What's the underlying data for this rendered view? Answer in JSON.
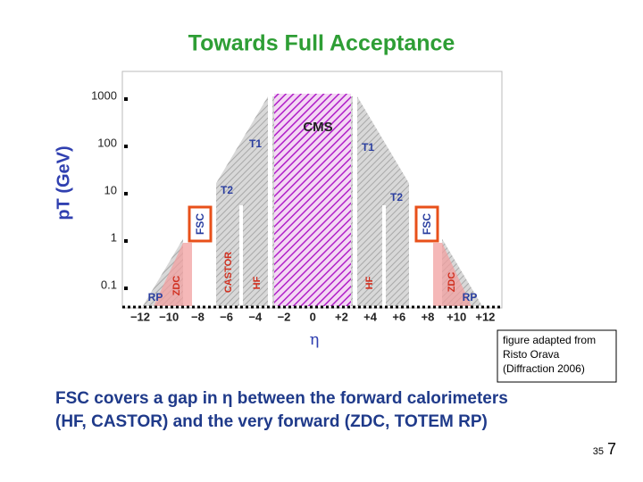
{
  "title": "Towards Full Acceptance",
  "figure": {
    "y_axis_label": "pT (GeV)",
    "y_tick_labels": [
      "1000",
      "100",
      "10",
      "1",
      "0.1"
    ],
    "x_axis_label": "η",
    "x_tick_labels": [
      "−12",
      "−10",
      "−8",
      "−6",
      "−4",
      "−2",
      "0",
      "+2",
      "+4",
      "+6",
      "+8",
      "+10",
      "+12"
    ],
    "regions": {
      "cms": "CMS",
      "t1_left": "T1",
      "t1_right": "T1",
      "t2_left": "T2",
      "t2_right": "T2",
      "fsc_left": "FSC",
      "fsc_right": "FSC",
      "castor": "CASTOR",
      "hf_left": "HF",
      "hf_right": "HF",
      "zdc_left": "ZDC",
      "zdc_right": "ZDC",
      "rp_left": "RP",
      "rp_right": "RP"
    }
  },
  "note": [
    "figure adapted from",
    "Risto Orava",
    "(Diffraction 2006)"
  ],
  "caption": [
    "FSC covers a gap in η between the forward calorimeters",
    "(HF, CASTOR) and the very forward (ZDC, TOTEM RP)"
  ],
  "page": {
    "small": "35",
    "large": "7"
  }
}
